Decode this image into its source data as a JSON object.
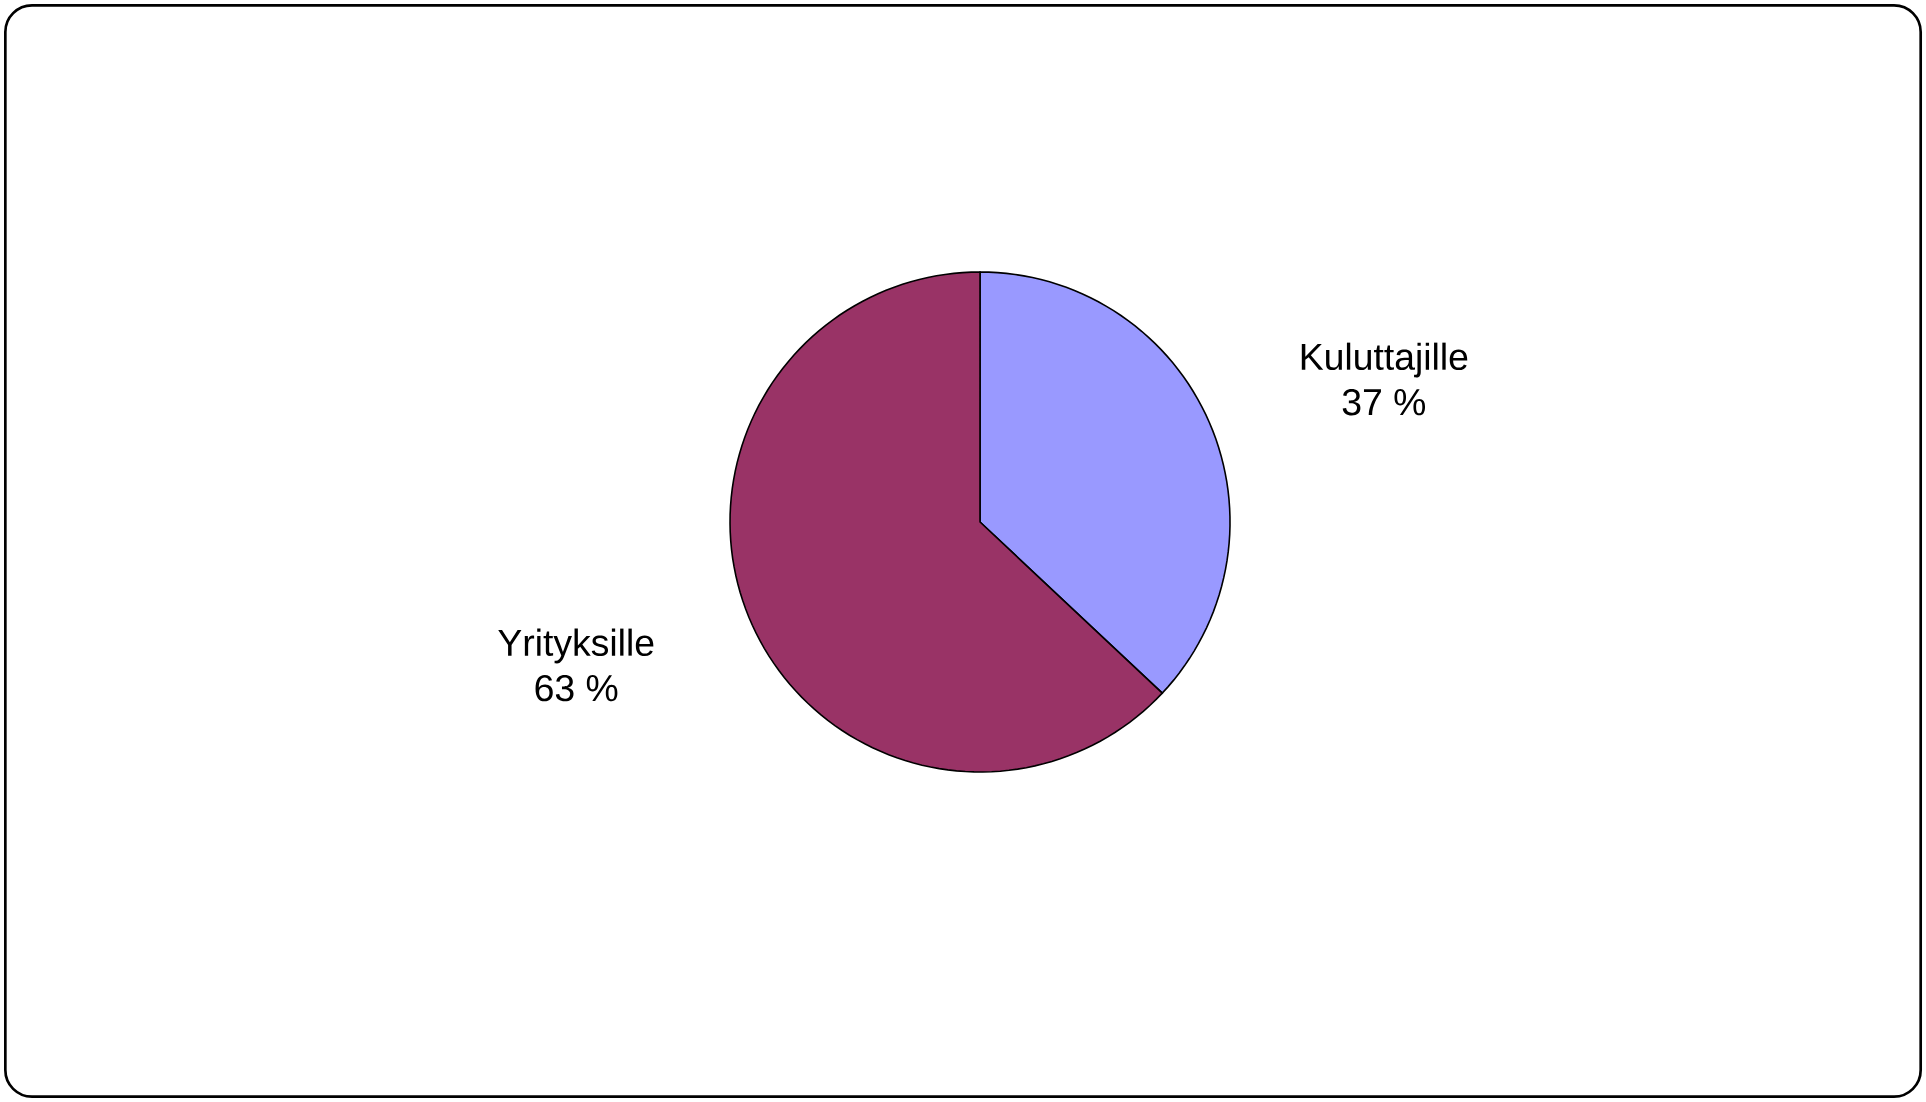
{
  "chart_data": {
    "type": "pie",
    "categories": [
      "Kuluttajille",
      "Yrityksille"
    ],
    "values": [
      37,
      63
    ],
    "colors": [
      "#9999ff",
      "#993366"
    ],
    "value_labels": [
      "37 %",
      "63 %"
    ]
  }
}
